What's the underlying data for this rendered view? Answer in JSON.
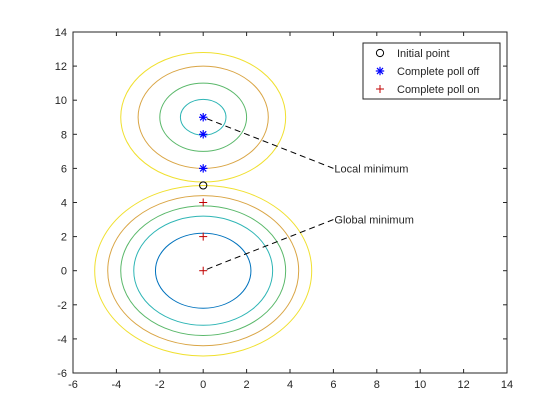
{
  "chart_data": {
    "type": "contour",
    "title": "",
    "xlabel": "",
    "ylabel": "",
    "xlim": [
      -6,
      14
    ],
    "ylim": [
      -6,
      14
    ],
    "xticks": [
      -6,
      -4,
      -2,
      0,
      2,
      4,
      6,
      8,
      10,
      12,
      14
    ],
    "yticks": [
      -6,
      -4,
      -2,
      0,
      2,
      4,
      6,
      8,
      10,
      12,
      14
    ],
    "grid": false,
    "legend_position": "top-right",
    "contour_colors": [
      "#0072bd",
      "#2eb5b5",
      "#5ab86a",
      "#d9a545",
      "#f0e030"
    ],
    "contours": [
      {
        "name": "",
        "center": [
          0,
          0
        ],
        "radii": [
          2.2,
          3.2,
          3.8,
          4.4,
          5.0
        ],
        "color_index": [
          0,
          1,
          2,
          3,
          4
        ]
      },
      {
        "name": "",
        "center": [
          0,
          9
        ],
        "radii": [
          1.05,
          2.0,
          3.0,
          3.8
        ],
        "color_index": [
          1,
          2,
          3,
          4
        ]
      }
    ],
    "series": [
      {
        "name": "Initial point",
        "marker": "o",
        "color": "#000000",
        "points": [
          [
            0,
            5
          ]
        ]
      },
      {
        "name": "Complete poll off",
        "marker": "*",
        "color": "#0000ff",
        "points": [
          [
            0,
            6
          ],
          [
            0,
            8
          ],
          [
            0,
            9
          ]
        ]
      },
      {
        "name": "Complete poll on",
        "marker": "+",
        "color": "#c00000",
        "points": [
          [
            0,
            4
          ],
          [
            0,
            2
          ],
          [
            0,
            0
          ]
        ]
      }
    ],
    "annotations": [
      {
        "text": "Local minimum",
        "point": [
          0,
          9
        ],
        "label_at": [
          6,
          6
        ]
      },
      {
        "text": "Global minimum",
        "point": [
          0,
          0
        ],
        "label_at": [
          6,
          3
        ]
      }
    ]
  }
}
